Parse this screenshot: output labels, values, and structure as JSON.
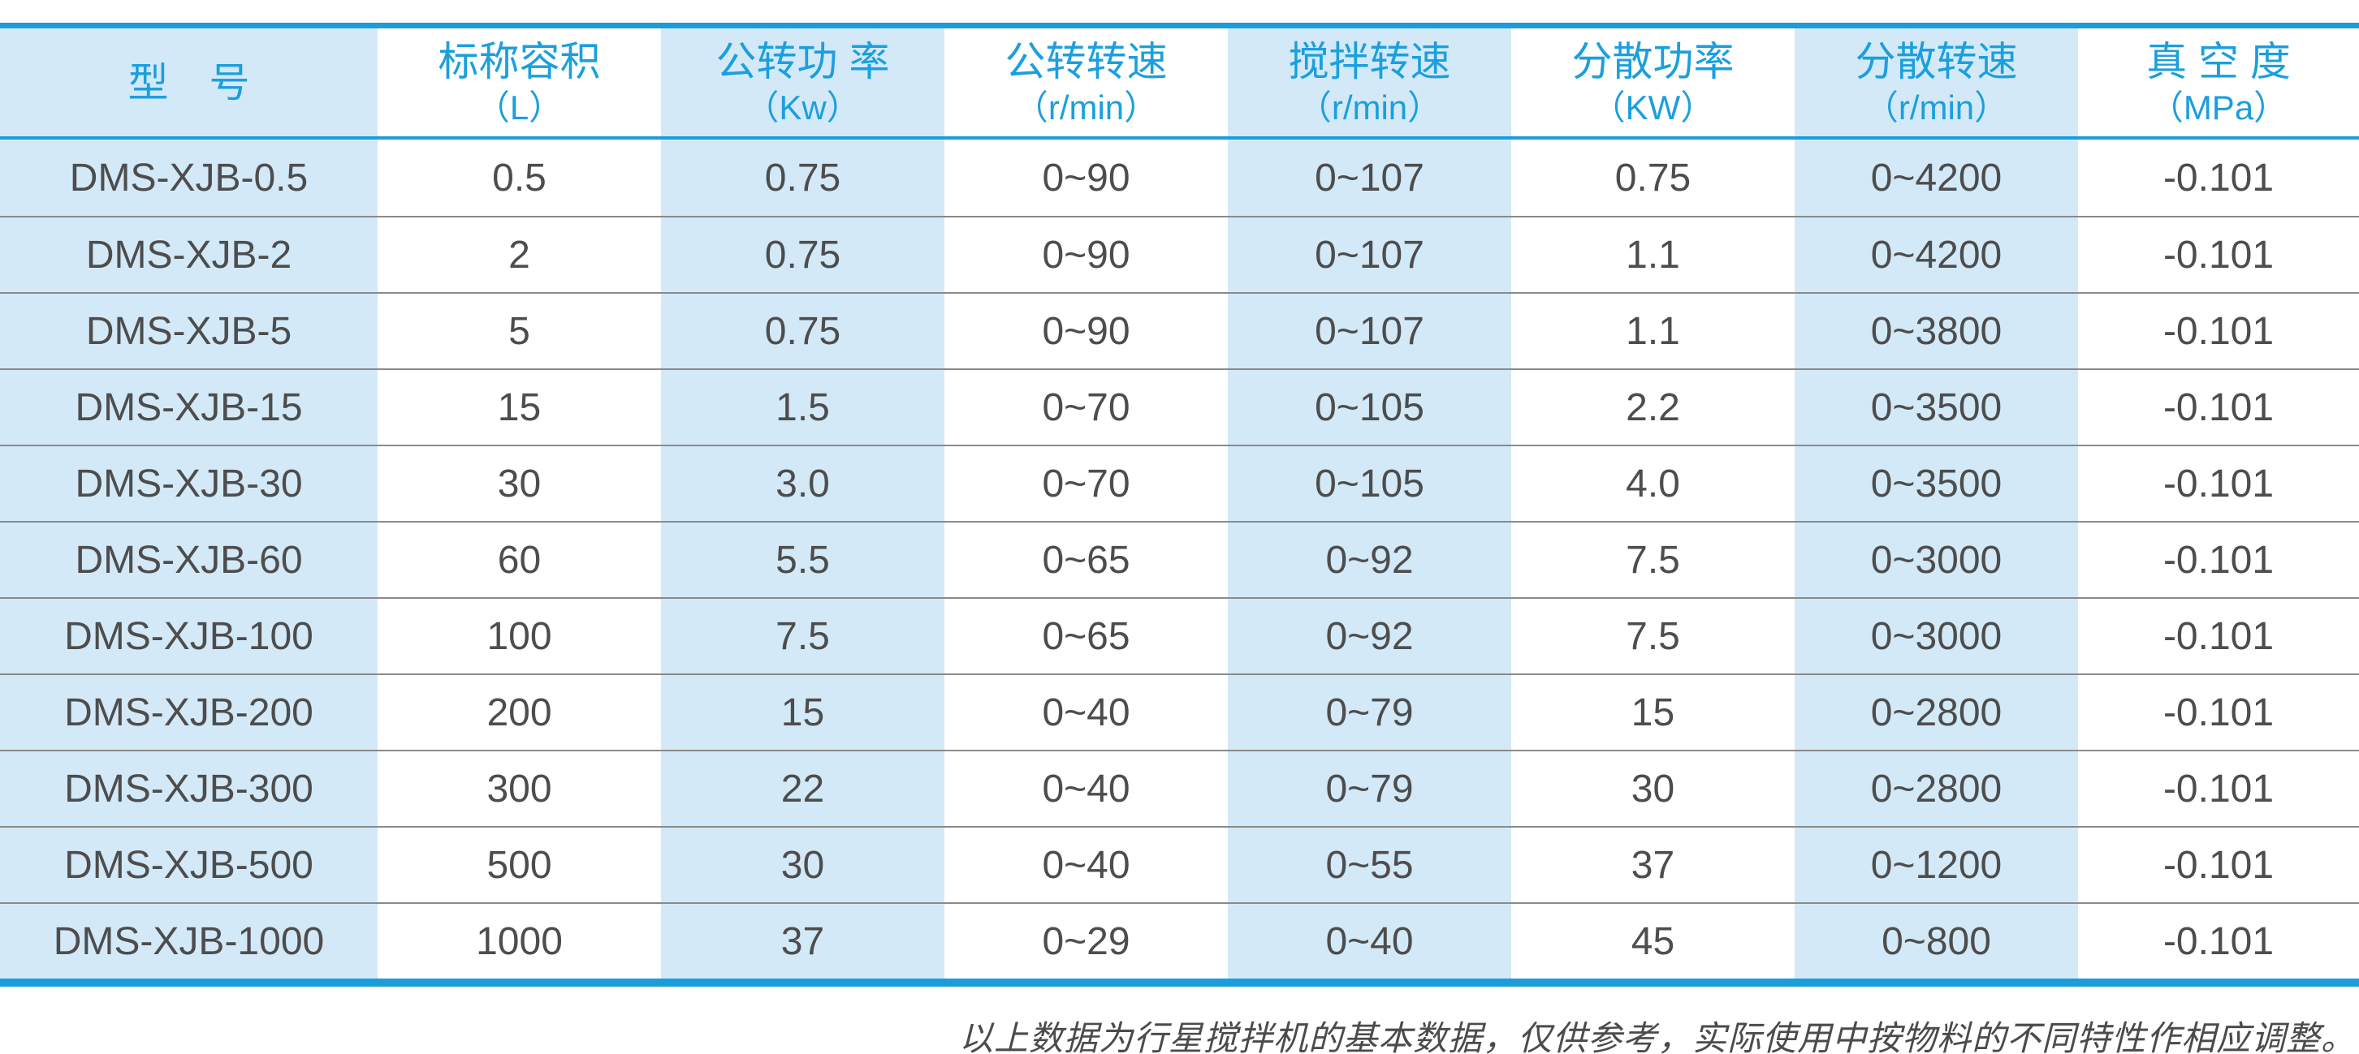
{
  "table": {
    "columns": [
      {
        "name": "型　号",
        "unit": ""
      },
      {
        "name": "标称容积",
        "unit": "（L）"
      },
      {
        "name": "公转功 率",
        "unit": "（Kw）"
      },
      {
        "name": "公转转速",
        "unit": "（r/min）"
      },
      {
        "name": "搅拌转速",
        "unit": "（r/min）"
      },
      {
        "name": "分散功率",
        "unit": "（KW）"
      },
      {
        "name": "分散转速",
        "unit": "（r/min）"
      },
      {
        "name": "真 空 度",
        "unit": "（MPa）"
      }
    ],
    "rows": [
      [
        "DMS-XJB-0.5",
        "0.5",
        "0.75",
        "0~90",
        "0~107",
        "0.75",
        "0~4200",
        "-0.101"
      ],
      [
        "DMS-XJB-2",
        "2",
        "0.75",
        "0~90",
        "0~107",
        "1.1",
        "0~4200",
        "-0.101"
      ],
      [
        "DMS-XJB-5",
        "5",
        "0.75",
        "0~90",
        "0~107",
        "1.1",
        "0~3800",
        "-0.101"
      ],
      [
        "DMS-XJB-15",
        "15",
        "1.5",
        "0~70",
        "0~105",
        "2.2",
        "0~3500",
        "-0.101"
      ],
      [
        "DMS-XJB-30",
        "30",
        "3.0",
        "0~70",
        "0~105",
        "4.0",
        "0~3500",
        "-0.101"
      ],
      [
        "DMS-XJB-60",
        "60",
        "5.5",
        "0~65",
        "0~92",
        "7.5",
        "0~3000",
        "-0.101"
      ],
      [
        "DMS-XJB-100",
        "100",
        "7.5",
        "0~65",
        "0~92",
        "7.5",
        "0~3000",
        "-0.101"
      ],
      [
        "DMS-XJB-200",
        "200",
        "15",
        "0~40",
        "0~79",
        "15",
        "0~2800",
        "-0.101"
      ],
      [
        "DMS-XJB-300",
        "300",
        "22",
        "0~40",
        "0~79",
        "30",
        "0~2800",
        "-0.101"
      ],
      [
        "DMS-XJB-500",
        "500",
        "30",
        "0~40",
        "0~55",
        "37",
        "0~1200",
        "-0.101"
      ],
      [
        "DMS-XJB-1000",
        "1000",
        "37",
        "0~29",
        "0~40",
        "45",
        "0~800",
        "-0.101"
      ]
    ]
  },
  "footnote": "以上数据为行星搅拌机的基本数据，仅供参考，实际使用中按物料的不同特性作相应调整。",
  "colors": {
    "accent_blue_line": "#1b9dda",
    "header_text_blue": "#1b9fde",
    "cell_blue_background": "#d3e9f8",
    "body_text_gray": "#4d4d4d",
    "row_separator_gray": "#8a8a8a"
  }
}
